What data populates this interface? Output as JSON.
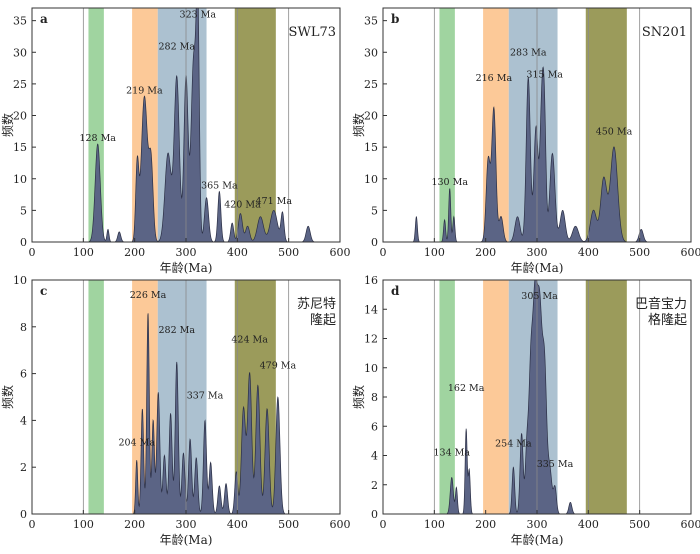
{
  "style": {
    "band_colors": [
      "#8fcc8f",
      "#fbbf86",
      "#9db6c8",
      "#8a8a3e"
    ],
    "curve_fill": "#5b6485",
    "curve_stroke": "#2b2f45",
    "divider_color": "#8a8a8a"
  },
  "chart_data": [
    {
      "type": "area",
      "panel_letter": "a",
      "sample_label": "SWL73",
      "xlabel": "年龄(Ma)",
      "ylabel": "频数",
      "xlim": [
        0,
        600
      ],
      "ylim": [
        0,
        37
      ],
      "xticks": [
        0,
        100,
        200,
        300,
        400,
        500,
        600
      ],
      "yticks": [
        0,
        5,
        10,
        15,
        20,
        25,
        30,
        35
      ],
      "bands": [
        [
          110,
          140
        ],
        [
          195,
          245
        ],
        [
          245,
          340
        ],
        [
          395,
          475
        ]
      ],
      "dividers": [
        100,
        300,
        400,
        500
      ],
      "peaks": [
        [
          128,
          15.5,
          5
        ],
        [
          148,
          2,
          2
        ],
        [
          170,
          1.6,
          3
        ],
        [
          205,
          12,
          3
        ],
        [
          219,
          23,
          6
        ],
        [
          232,
          12,
          4
        ],
        [
          265,
          14,
          6
        ],
        [
          282,
          26,
          5
        ],
        [
          300,
          26,
          4
        ],
        [
          315,
          29,
          5
        ],
        [
          323,
          33,
          3
        ],
        [
          340,
          7,
          4
        ],
        [
          365,
          8,
          3
        ],
        [
          390,
          3,
          3
        ],
        [
          406,
          4.5,
          4
        ],
        [
          420,
          2.5,
          4
        ],
        [
          445,
          4,
          6
        ],
        [
          471,
          5,
          7
        ],
        [
          488,
          4.5,
          3
        ],
        [
          538,
          2.5,
          4
        ]
      ],
      "labels": [
        {
          "text": "128 Ma",
          "x": 128,
          "y": 15.5
        },
        {
          "text": "219 Ma",
          "x": 219,
          "y": 23
        },
        {
          "text": "282 Ma",
          "x": 282,
          "y": 30
        },
        {
          "text": "323 Ma",
          "x": 323,
          "y": 35
        },
        {
          "text": "365 Ma",
          "x": 365,
          "y": 8
        },
        {
          "text": "420 Ma",
          "x": 410,
          "y": 5
        },
        {
          "text": "471 Ma",
          "x": 471,
          "y": 5.5
        }
      ]
    },
    {
      "type": "area",
      "panel_letter": "b",
      "sample_label": "SN201",
      "xlabel": "年龄(Ma)",
      "ylabel": "频数",
      "xlim": [
        0,
        600
      ],
      "ylim": [
        0,
        37
      ],
      "xticks": [
        0,
        100,
        200,
        300,
        400,
        500,
        600
      ],
      "yticks": [
        0,
        5,
        10,
        15,
        20,
        25,
        30,
        35
      ],
      "bands": [
        [
          110,
          140
        ],
        [
          195,
          245
        ],
        [
          245,
          340
        ],
        [
          395,
          475
        ]
      ],
      "dividers": [
        100,
        300,
        400,
        500
      ],
      "peaks": [
        [
          65,
          4,
          2
        ],
        [
          120,
          3.5,
          2
        ],
        [
          130,
          8.5,
          2
        ],
        [
          138,
          4,
          2
        ],
        [
          205,
          13,
          4
        ],
        [
          216,
          21,
          4
        ],
        [
          230,
          4,
          4
        ],
        [
          262,
          4,
          5
        ],
        [
          283,
          26,
          4
        ],
        [
          298,
          18,
          4
        ],
        [
          310,
          23,
          4
        ],
        [
          315,
          12,
          3
        ],
        [
          330,
          14,
          5
        ],
        [
          350,
          5,
          5
        ],
        [
          375,
          2.5,
          6
        ],
        [
          410,
          5,
          6
        ],
        [
          430,
          10,
          6
        ],
        [
          450,
          15,
          7
        ],
        [
          503,
          2,
          4
        ]
      ],
      "labels": [
        {
          "text": "130 Ma",
          "x": 130,
          "y": 8.5
        },
        {
          "text": "216 Ma",
          "x": 216,
          "y": 25
        },
        {
          "text": "283 Ma",
          "x": 283,
          "y": 29
        },
        {
          "text": "315 Ma",
          "x": 315,
          "y": 25.5
        },
        {
          "text": "450 Ma",
          "x": 450,
          "y": 16.5
        }
      ]
    },
    {
      "type": "area",
      "panel_letter": "c",
      "sample_label": "苏尼特\n隆起",
      "xlabel": "年龄(Ma)",
      "ylabel": "频数",
      "xlim": [
        0,
        600
      ],
      "ylim": [
        0,
        10
      ],
      "xticks": [
        0,
        100,
        200,
        300,
        400,
        500,
        600
      ],
      "yticks": [
        0,
        2,
        4,
        6,
        8,
        10
      ],
      "bands": [
        [
          110,
          140
        ],
        [
          195,
          245
        ],
        [
          245,
          340
        ],
        [
          395,
          475
        ]
      ],
      "dividers": [
        100,
        300,
        400,
        500
      ],
      "peaks": [
        [
          204,
          2.3,
          2
        ],
        [
          215,
          4.5,
          2.5
        ],
        [
          226,
          8.6,
          2.5
        ],
        [
          236,
          4,
          2.5
        ],
        [
          246,
          5.2,
          3
        ],
        [
          258,
          2.5,
          3
        ],
        [
          270,
          4.3,
          3
        ],
        [
          282,
          6.5,
          3
        ],
        [
          295,
          2.6,
          3
        ],
        [
          308,
          3.2,
          3
        ],
        [
          320,
          2.4,
          3
        ],
        [
          337,
          4,
          3
        ],
        [
          348,
          2.2,
          3
        ],
        [
          365,
          1.2,
          3
        ],
        [
          378,
          1.3,
          3
        ],
        [
          398,
          1.8,
          3
        ],
        [
          412,
          4.5,
          4
        ],
        [
          424,
          6,
          4
        ],
        [
          440,
          5.5,
          4
        ],
        [
          458,
          4.5,
          4
        ],
        [
          479,
          5,
          4
        ]
      ],
      "labels": [
        {
          "text": "204 Ma",
          "x": 204,
          "y": 2.8
        },
        {
          "text": "226 Ma",
          "x": 226,
          "y": 9.1
        },
        {
          "text": "282 Ma",
          "x": 282,
          "y": 7.6
        },
        {
          "text": "337 Ma",
          "x": 337,
          "y": 4.8
        },
        {
          "text": "424 Ma",
          "x": 424,
          "y": 7.2
        },
        {
          "text": "479 Ma",
          "x": 479,
          "y": 6.1
        }
      ]
    },
    {
      "type": "area",
      "panel_letter": "d",
      "sample_label": "巴音宝力\n格隆起",
      "xlabel": "年龄(Ma)",
      "ylabel": "频数",
      "xlim": [
        0,
        600
      ],
      "ylim": [
        0,
        16
      ],
      "xticks": [
        0,
        100,
        200,
        300,
        400,
        500,
        600
      ],
      "yticks": [
        0,
        2,
        4,
        6,
        8,
        10,
        12,
        14,
        16
      ],
      "bands": [
        [
          110,
          140
        ],
        [
          195,
          245
        ],
        [
          245,
          340
        ],
        [
          395,
          475
        ]
      ],
      "dividers": [
        100,
        300,
        400,
        500
      ],
      "peaks": [
        [
          134,
          2.5,
          3
        ],
        [
          143,
          1.8,
          2
        ],
        [
          162,
          5.8,
          2
        ],
        [
          168,
          3,
          2
        ],
        [
          254,
          3.2,
          2.5
        ],
        [
          270,
          5.5,
          3
        ],
        [
          280,
          4,
          3
        ],
        [
          288,
          10,
          4
        ],
        [
          296,
          12,
          4
        ],
        [
          305,
          14,
          5
        ],
        [
          315,
          9,
          4
        ],
        [
          325,
          3,
          4
        ],
        [
          335,
          1.8,
          3
        ],
        [
          365,
          0.8,
          3
        ]
      ],
      "labels": [
        {
          "text": "134 Ma",
          "x": 134,
          "y": 3.8
        },
        {
          "text": "162 Ma",
          "x": 162,
          "y": 8.2
        },
        {
          "text": "254 Ma",
          "x": 254,
          "y": 4.4
        },
        {
          "text": "305 Ma",
          "x": 305,
          "y": 14.5
        },
        {
          "text": "335 Ma",
          "x": 335,
          "y": 3.0
        }
      ]
    }
  ]
}
